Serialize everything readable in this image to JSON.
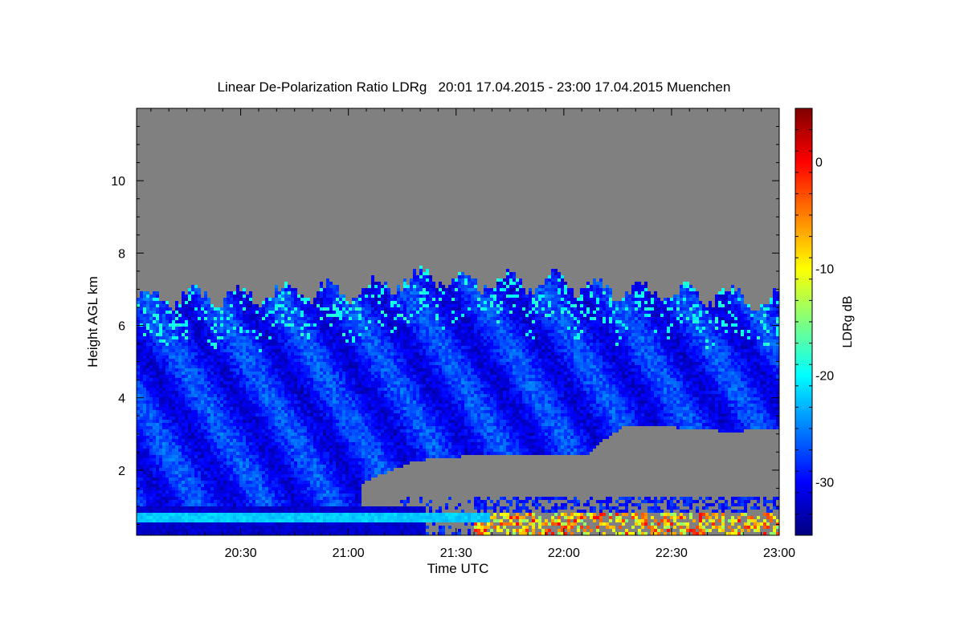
{
  "chart_data": {
    "type": "heatmap",
    "title": "Linear De-Polarization Ratio LDRg   20:01 17.04.2015 - 23:00 17.04.2015 Muenchen",
    "xlabel": "Time UTC",
    "ylabel": "Height AGL km",
    "xlim": [
      "20:01",
      "23:00"
    ],
    "ylim": [
      0.2,
      12.0
    ],
    "x_ticks": [
      "20:30",
      "21:00",
      "21:30",
      "22:00",
      "22:30",
      "23:00"
    ],
    "y_ticks": [
      2,
      4,
      6,
      8,
      10
    ],
    "colorbar": {
      "label": "LDRg dB",
      "range": [
        -35,
        5
      ],
      "ticks": [
        0,
        -10,
        -20,
        -30
      ],
      "colormap": "jet",
      "stops": [
        "#00007f",
        "#0000ff",
        "#007fff",
        "#00ffff",
        "#7fff7f",
        "#ffff00",
        "#ff7f00",
        "#ff0000",
        "#7f0000"
      ]
    },
    "no_data_color": "#808080",
    "features": {
      "cloud_top_km": [
        [
          0,
          6.8
        ],
        [
          0.2,
          6.9
        ],
        [
          0.35,
          7.0
        ],
        [
          0.45,
          7.4
        ],
        [
          0.55,
          7.2
        ],
        [
          0.65,
          7.3
        ],
        [
          0.75,
          7.0
        ],
        [
          0.9,
          6.9
        ],
        [
          1.0,
          6.7
        ]
      ],
      "cloud_base_km": [
        [
          0.35,
          1.7
        ],
        [
          0.43,
          2.3
        ],
        [
          0.55,
          2.5
        ],
        [
          0.7,
          2.5
        ],
        [
          0.72,
          2.8
        ],
        [
          0.76,
          3.3
        ],
        [
          0.85,
          3.2
        ],
        [
          0.92,
          3.1
        ],
        [
          1.0,
          3.2
        ]
      ],
      "aerosol_layer_km": 0.75,
      "aerosol_layer_ldr_db": -22,
      "precipitation_ldr_db": [
        -15,
        0
      ]
    }
  }
}
